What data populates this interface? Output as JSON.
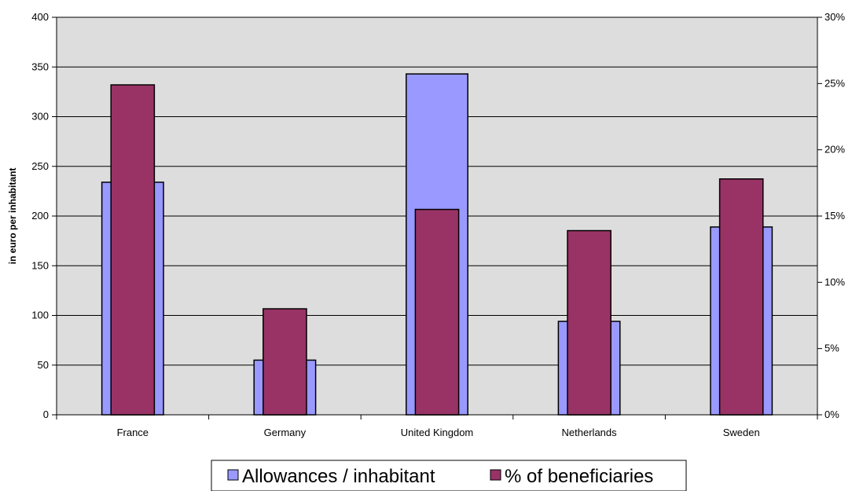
{
  "chart_data": {
    "type": "bar",
    "categories": [
      "France",
      "Germany",
      "United Kingdom",
      "Netherlands",
      "Sweden"
    ],
    "series": [
      {
        "name": "Allowances / inhabitant",
        "axis": "left",
        "values": [
          234,
          55,
          343,
          94,
          189
        ],
        "color": "#9999ff"
      },
      {
        "name": "% of beneficiaries",
        "axis": "right",
        "values": [
          24.9,
          8.0,
          15.5,
          13.9,
          17.8
        ],
        "color": "#993366"
      }
    ],
    "ylabel": "in euro per inhabitant",
    "ylim": [
      0,
      400
    ],
    "yticks": [
      0,
      50,
      100,
      150,
      200,
      250,
      300,
      350,
      400
    ],
    "y2lim": [
      0,
      30
    ],
    "y2ticks": [
      "0%",
      "5%",
      "10%",
      "15%",
      "20%",
      "25%",
      "30%"
    ],
    "grid": true,
    "plot_background": "#dddddd",
    "legend_position": "bottom-center"
  }
}
